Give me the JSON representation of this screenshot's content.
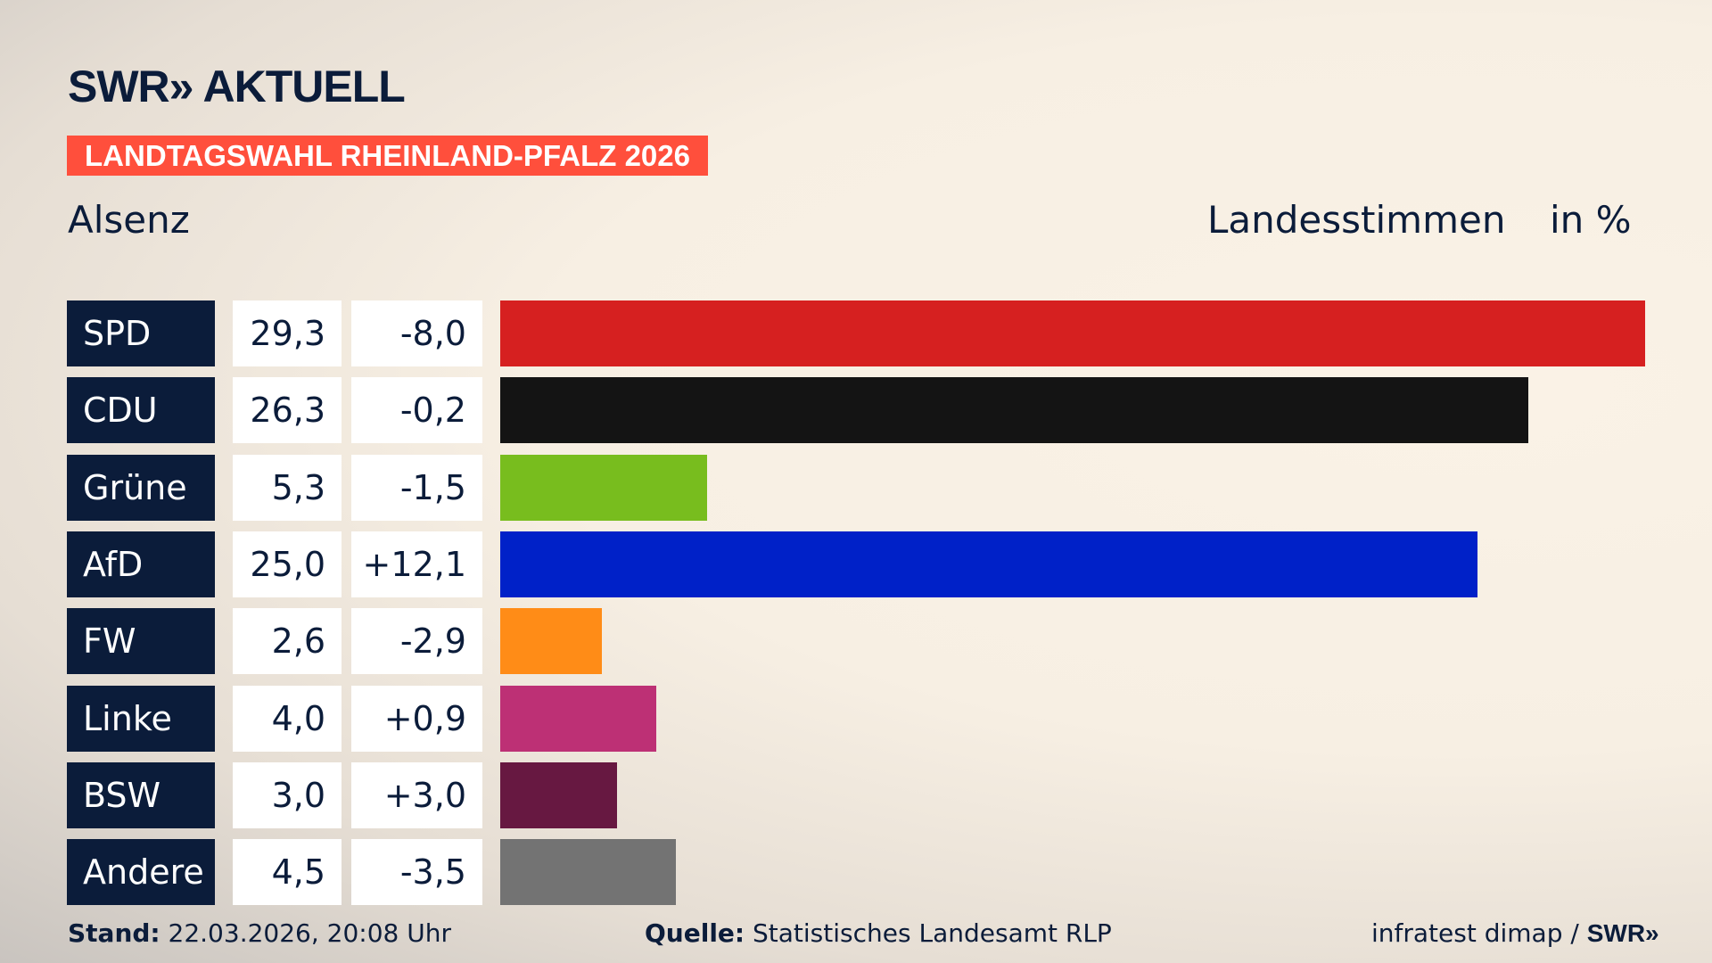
{
  "header": {
    "logo": "SWR» AKTUELL",
    "banner": "LANDTAGSWAHL RHEINLAND-PFALZ 2026",
    "region": "Alsenz",
    "measure": "Landesstimmen",
    "unit": "in %"
  },
  "chart_data": {
    "type": "bar",
    "orientation": "horizontal",
    "title": "Landesstimmen",
    "ylabel": "in %",
    "categories": [
      "SPD",
      "CDU",
      "Grüne",
      "AfD",
      "FW",
      "Linke",
      "BSW",
      "Andere"
    ],
    "values": [
      "29,3",
      "26,3",
      "5,3",
      "25,0",
      "2,6",
      "4,0",
      "3,0",
      "4,5"
    ],
    "numeric_values": [
      29.3,
      26.3,
      5.3,
      25.0,
      2.6,
      4.0,
      3.0,
      4.5
    ],
    "changes": [
      "-8,0",
      "-0,2",
      "-1,5",
      "+12,1",
      "-2,9",
      "+0,9",
      "+3,0",
      "-3,5"
    ],
    "colors": [
      "#d62020",
      "#141414",
      "#78bd1e",
      "#0021c8",
      "#ff8c17",
      "#bd3075",
      "#671841",
      "#737373"
    ],
    "xlim": [
      0,
      29.3
    ]
  },
  "footer": {
    "stand_label": "Stand:",
    "stand": "22.03.2026, 20:08 Uhr",
    "source_label": "Quelle:",
    "source": "Statistisches Landesamt RLP",
    "credit": "infratest dimap /",
    "credit_logo": "SWR»"
  }
}
